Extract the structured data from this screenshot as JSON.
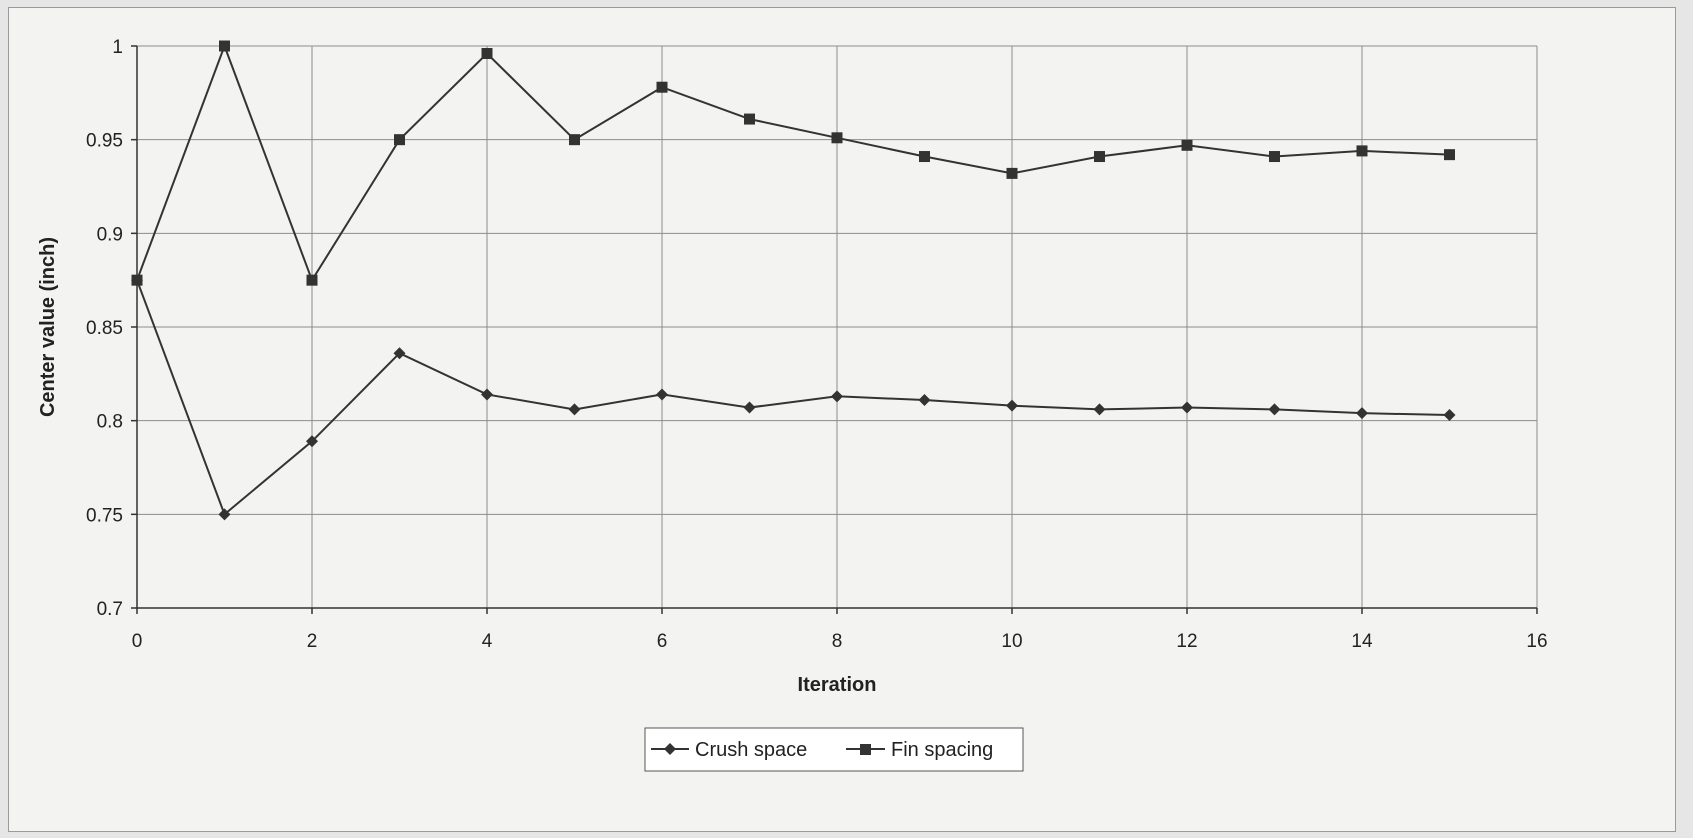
{
  "chart_data": {
    "type": "line",
    "title": "",
    "xlabel": "Iteration",
    "ylabel": "Center value (inch)",
    "xlim": [
      0,
      16
    ],
    "ylim": [
      0.7,
      1.0
    ],
    "x_ticks": [
      "0",
      "2",
      "4",
      "6",
      "8",
      "10",
      "12",
      "14",
      "16"
    ],
    "y_ticks": [
      "0.7",
      "0.75",
      "0.8",
      "0.85",
      "0.9",
      "0.95",
      "1"
    ],
    "grid": true,
    "legend_position": "bottom",
    "x": [
      0,
      1,
      2,
      3,
      4,
      5,
      6,
      7,
      8,
      9,
      10,
      11,
      12,
      13,
      14,
      15
    ],
    "series": [
      {
        "name": "Crush space",
        "marker": "diamond",
        "color": "#333333",
        "values": [
          0.875,
          0.75,
          0.789,
          0.836,
          0.814,
          0.806,
          0.814,
          0.807,
          0.813,
          0.811,
          0.808,
          0.806,
          0.807,
          0.806,
          0.804,
          0.803
        ]
      },
      {
        "name": "Fin spacing",
        "marker": "square",
        "color": "#333333",
        "values": [
          0.875,
          1.0,
          0.875,
          0.95,
          0.996,
          0.95,
          0.978,
          0.961,
          0.951,
          0.941,
          0.932,
          0.941,
          0.947,
          0.941,
          0.944,
          0.942
        ]
      }
    ]
  }
}
